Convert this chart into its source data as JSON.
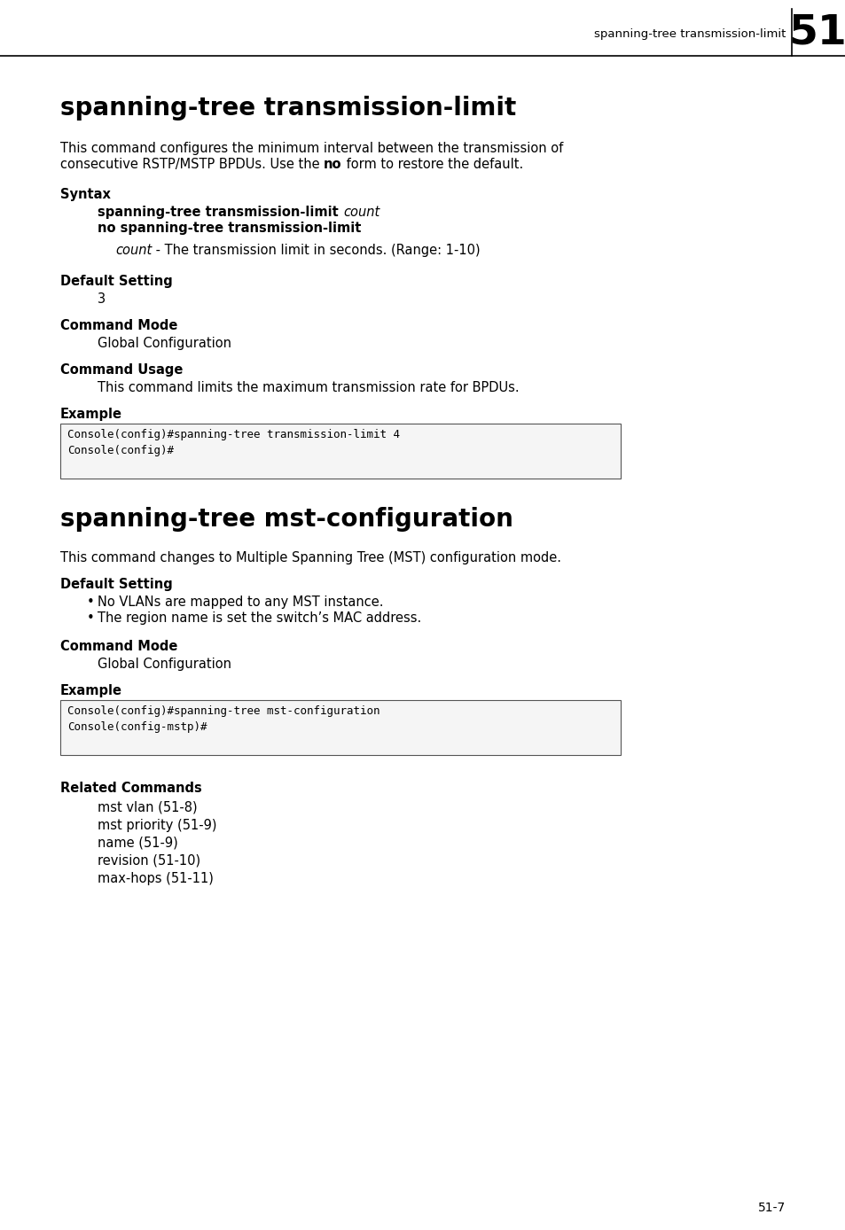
{
  "page_bg": "#ffffff",
  "header_label": "spanning-tree transmission-limit",
  "header_number": "51",
  "section1_title": "spanning-tree transmission-limit",
  "section1_desc_line1": "This command configures the minimum interval between the transmission of",
  "section1_desc_line2_pre": "consecutive RSTP/MSTP BPDUs. Use the ",
  "section1_desc_line2_bold": "no",
  "section1_desc_line2_post": " form to restore the default.",
  "syntax_label": "Syntax",
  "syntax_line1_bold": "spanning-tree transmission-limit ",
  "syntax_line1_italic": "count",
  "syntax_line2_bold": "no spanning-tree transmission-limit",
  "syntax_param_italic": "count",
  "syntax_param_rest": " - The transmission limit in seconds. (Range: 1-10)",
  "default_label1": "Default Setting",
  "default_value1": "3",
  "cmdmode_label1": "Command Mode",
  "cmdmode_value1": "Global Configuration",
  "cmdusage_label": "Command Usage",
  "cmdusage_value": "This command limits the maximum transmission rate for BPDUs.",
  "example_label1": "Example",
  "example_code1_line1": "Console(config)#spanning-tree transmission-limit 4",
  "example_code1_line2": "Console(config)#",
  "section2_title": "spanning-tree mst-configuration",
  "section2_desc": "This command changes to Multiple Spanning Tree (MST) configuration mode.",
  "default_label2": "Default Setting",
  "default_bullet1": "No VLANs are mapped to any MST instance.",
  "default_bullet2": "The region name is set the switch’s MAC address.",
  "cmdmode_label2": "Command Mode",
  "cmdmode_value2": "Global Configuration",
  "example_label2": "Example",
  "example_code2_line1": "Console(config)#spanning-tree mst-configuration",
  "example_code2_line2": "Console(config-mstp)#",
  "related_label": "Related Commands",
  "related_items": [
    "mst vlan (51-8)",
    "mst priority (51-9)",
    "name (51-9)",
    "revision (51-10)",
    "max-hops (51-11)"
  ],
  "footer_text": "51-7"
}
